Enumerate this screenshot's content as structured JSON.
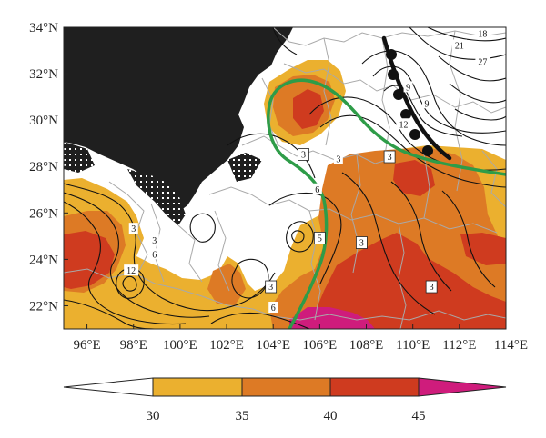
{
  "map": {
    "lat_ticks": [
      "34°N",
      "32°N",
      "30°N",
      "28°N",
      "26°N",
      "24°N",
      "22°N"
    ],
    "lon_ticks": [
      "96°E",
      "98°E",
      "100°E",
      "102°E",
      "104°E",
      "106°E",
      "108°E",
      "110°E",
      "112°E",
      "114°E"
    ],
    "extent": {
      "lon": [
        95,
        114
      ],
      "lat": [
        21,
        34
      ]
    },
    "contour_labels": [
      {
        "text": "3",
        "lon": 98.0,
        "lat": 25.3
      },
      {
        "text": "3",
        "lon": 98.9,
        "lat": 24.8
      },
      {
        "text": "6",
        "lon": 98.9,
        "lat": 24.2
      },
      {
        "text": "12",
        "lon": 97.9,
        "lat": 23.5
      },
      {
        "text": "3",
        "lon": 106.8,
        "lat": 28.3
      },
      {
        "text": "6",
        "lon": 105.9,
        "lat": 27.0
      },
      {
        "text": "6",
        "lon": 104.0,
        "lat": 21.9
      },
      {
        "text": "9",
        "lon": 109.8,
        "lat": 31.4
      },
      {
        "text": "9",
        "lon": 110.6,
        "lat": 30.7
      },
      {
        "text": "12",
        "lon": 109.6,
        "lat": 29.8
      },
      {
        "text": "18",
        "lon": 113.0,
        "lat": 33.7
      },
      {
        "text": "21",
        "lon": 112.0,
        "lat": 33.2
      },
      {
        "text": "27",
        "lon": 113.0,
        "lat": 32.5
      }
    ],
    "box_labels": [
      {
        "text": "3",
        "lon": 105.3,
        "lat": 28.5
      },
      {
        "text": "5",
        "lon": 106.0,
        "lat": 24.9
      },
      {
        "text": "3",
        "lon": 107.8,
        "lat": 24.7
      },
      {
        "text": "3",
        "lon": 103.9,
        "lat": 22.8
      },
      {
        "text": "3",
        "lon": 109.0,
        "lat": 28.4
      },
      {
        "text": "3",
        "lon": 110.8,
        "lat": 22.8
      }
    ],
    "colors": {
      "level_30": "#ebb02f",
      "level_35": "#dd7a25",
      "level_40": "#cf3b1f",
      "level_45": "#cf1c7c",
      "green_line": "#2e9c48",
      "terrain": "#1f1f1f",
      "border": "#a9a9a9"
    }
  },
  "colorbar": {
    "labels": [
      "30",
      "35",
      "40",
      "45"
    ],
    "colors": [
      "#ffffff",
      "#ebb02f",
      "#dd7a25",
      "#cf3b1f",
      "#cf1c7c"
    ]
  }
}
